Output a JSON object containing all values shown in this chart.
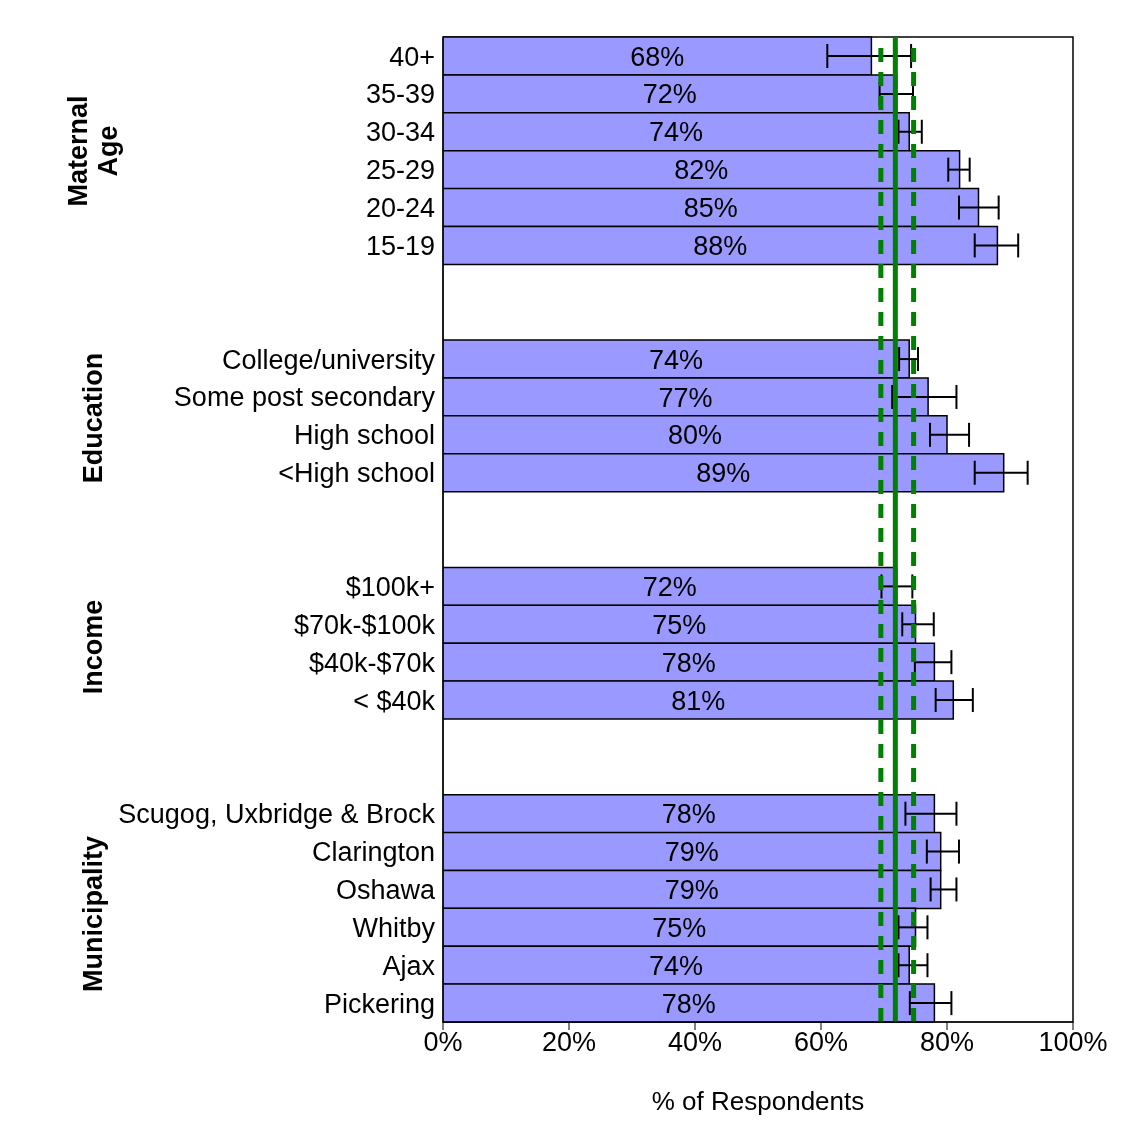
{
  "chart_data": {
    "type": "bar",
    "orientation": "horizontal",
    "xlabel": "% of Respondents",
    "annotations": [
      "Maternal Age",
      "Education",
      "Income",
      "Municipality"
    ],
    "categories": [
      "40+",
      "35-39",
      "30-34",
      "25-29",
      "20-24",
      "15-19",
      null,
      null,
      "College/university",
      "Some post secondary",
      "High school",
      "<High school",
      null,
      null,
      "$100k+",
      "$70k-$100k",
      "$40k-$70k",
      "< $40k",
      null,
      null,
      "Scugog, Uxbridge & Brock",
      "Clarington",
      "Oshawa",
      "Whitby",
      "Ajax",
      "Pickering"
    ],
    "values": [
      68,
      72,
      74,
      82,
      85,
      88,
      null,
      null,
      74,
      77,
      80,
      89,
      null,
      null,
      72,
      75,
      78,
      81,
      null,
      null,
      78,
      79,
      79,
      75,
      74,
      78
    ],
    "value_labels": [
      "68%",
      "72%",
      "74%",
      "82%",
      "85%",
      "88%",
      null,
      null,
      "74%",
      "77%",
      "80%",
      "89%",
      null,
      null,
      "72%",
      "75%",
      "78%",
      "81%",
      null,
      null,
      "78%",
      "79%",
      "79%",
      "75%",
      "74%",
      "78%"
    ],
    "errors": [
      [
        61,
        74.3
      ],
      [
        69.3,
        74.6
      ],
      [
        72.3,
        76
      ],
      [
        80.2,
        83.6
      ],
      [
        81.9,
        88.2
      ],
      [
        84.4,
        91.3
      ],
      null,
      null,
      [
        72.4,
        75.4
      ],
      [
        71.3,
        81.5
      ],
      [
        77.3,
        83.5
      ],
      [
        84.4,
        92.8
      ],
      null,
      null,
      [
        69.6,
        74.5
      ],
      [
        72.9,
        77.9
      ],
      [
        74.9,
        80.7
      ],
      [
        78.2,
        84.1
      ],
      null,
      null,
      [
        73.4,
        81.5
      ],
      [
        76.8,
        81.9
      ],
      [
        77.4,
        81.5
      ],
      [
        72.3,
        76.9
      ],
      [
        72.3,
        76.9
      ],
      [
        74.1,
        80.7
      ]
    ],
    "color": "#9999ff",
    "xlim": [
      0,
      100
    ],
    "xticks": [
      {
        "value": 0,
        "label": "0%"
      },
      {
        "value": 20,
        "label": "20%"
      },
      {
        "value": 40,
        "label": "40%"
      },
      {
        "value": 60,
        "label": "60%"
      },
      {
        "value": 80,
        "label": "80%"
      },
      {
        "value": 100,
        "label": "100%"
      }
    ],
    "ref_lines": [
      {
        "axis": "x",
        "value": 69.5,
        "color": "#008000",
        "line_style": "dashed"
      },
      {
        "axis": "x",
        "value": 71.8,
        "color": "#008000",
        "line_style": "solid"
      },
      {
        "axis": "x",
        "value": 74.7,
        "color": "#008000",
        "line_style": "dashed"
      }
    ],
    "tick_labels": "xy"
  }
}
